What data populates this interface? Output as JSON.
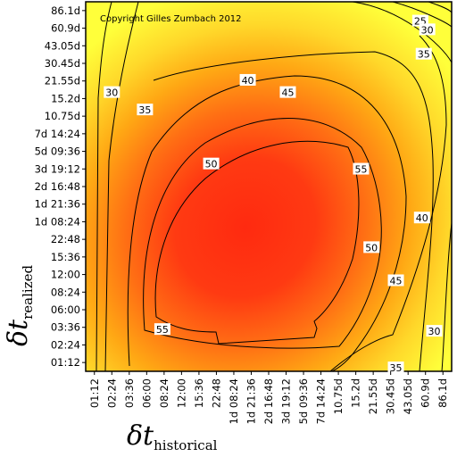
{
  "chart_data": {
    "type": "heatmap",
    "title": "",
    "copyright": "Copyright Gilles Zumbach 2012",
    "xlabel_symbol": "δt",
    "xlabel_sub": "historical",
    "ylabel_symbol": "δt",
    "ylabel_sub": "realized",
    "ticks": [
      "01:12",
      "02:24",
      "03:36",
      "06:00",
      "08:24",
      "12:00",
      "15:36",
      "22:48",
      "1d 08:24",
      "1d 21:36",
      "2d 16:48",
      "3d 19:12",
      "5d 09:36",
      "7d 14:24",
      "10.75d",
      "15.2d",
      "21.55d",
      "30.45d",
      "43.05d",
      "60.9d",
      "86.1d"
    ],
    "contour_levels": [
      25,
      30,
      35,
      40,
      45,
      50,
      55
    ],
    "contour_labels": [
      {
        "text": "25",
        "x": 19.2,
        "y": 20.1
      },
      {
        "text": "30",
        "x": 19.6,
        "y": 19.6
      },
      {
        "text": "35",
        "x": 19.4,
        "y": 18.2
      },
      {
        "text": "30",
        "x": 1.5,
        "y": 16.0
      },
      {
        "text": "35",
        "x": 3.4,
        "y": 15.0
      },
      {
        "text": "40",
        "x": 9.3,
        "y": 16.7
      },
      {
        "text": "45",
        "x": 11.6,
        "y": 16.0
      },
      {
        "text": "50",
        "x": 7.2,
        "y": 11.9
      },
      {
        "text": "55",
        "x": 15.8,
        "y": 11.6
      },
      {
        "text": "40",
        "x": 19.3,
        "y": 8.8
      },
      {
        "text": "50",
        "x": 16.4,
        "y": 7.1
      },
      {
        "text": "45",
        "x": 17.8,
        "y": 5.2
      },
      {
        "text": "55",
        "x": 4.4,
        "y": 2.4
      },
      {
        "text": "30",
        "x": 20.0,
        "y": 2.3
      },
      {
        "text": "35",
        "x": 17.8,
        "y": 0.2
      }
    ],
    "colors": {
      "low": "#ffff3a",
      "mid": "#ff9a10",
      "high": "#ff2a10",
      "contour": "#000000"
    }
  }
}
